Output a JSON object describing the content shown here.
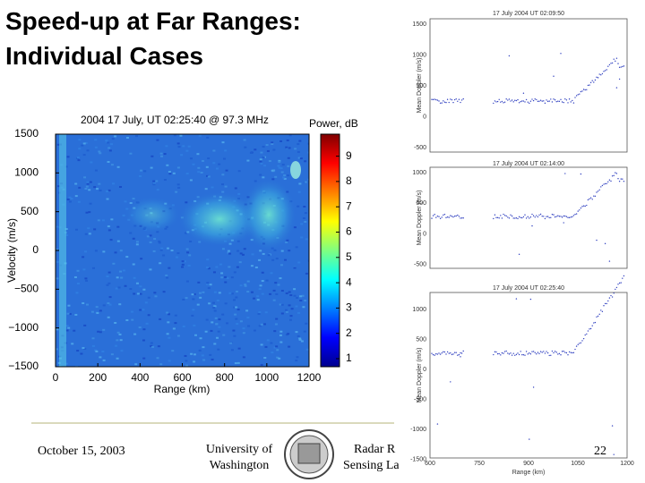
{
  "slide": {
    "title_lines": [
      "Speed-up at Far Ranges:",
      "Individual Cases"
    ],
    "footer": {
      "date": "October 15, 2003",
      "university_lines": [
        "University of",
        "Washington"
      ],
      "lab_lines": [
        "Radar R",
        "Sensing La"
      ],
      "page": "22"
    }
  },
  "main_plot": {
    "title": "2004 17 July, UT 02:25:40 @ 97.3 MHz",
    "x_label": "Range (km)",
    "y_label": "Velocity (m/s)",
    "colorbar_label": "Power, dB",
    "x_ticks": [
      "0",
      "200",
      "400",
      "600",
      "800",
      "1000",
      "1200"
    ],
    "y_ticks": [
      "1500",
      "1000",
      "500",
      "0",
      "−500",
      "−1000",
      "−1500"
    ],
    "colorbar_ticks": [
      "1",
      "2",
      "3",
      "4",
      "5",
      "6",
      "7",
      "8",
      "9"
    ]
  },
  "side_plots": [
    {
      "title": "17 July 2004 UT 02:09:50",
      "y_label": "Mean Doppler (m/s)",
      "y_ticks": [
        "1500",
        "1000",
        "500",
        "0",
        "-500"
      ]
    },
    {
      "title": "17 July 2004 UT 02:14:00",
      "y_label": "Mean Doppler (m/s)",
      "y_ticks": [
        "1000",
        "500",
        "0",
        "-500"
      ]
    },
    {
      "title": "17 July 2004 UT 02:25:40",
      "y_label": "Mean Doppler (m/s)",
      "y_ticks": [
        "1000",
        "500",
        "0",
        "-500",
        "-1000",
        "-1500"
      ],
      "x_ticks": [
        "600",
        "750",
        "900",
        "1050",
        "1200"
      ],
      "x_label": "Range (km)"
    }
  ]
}
